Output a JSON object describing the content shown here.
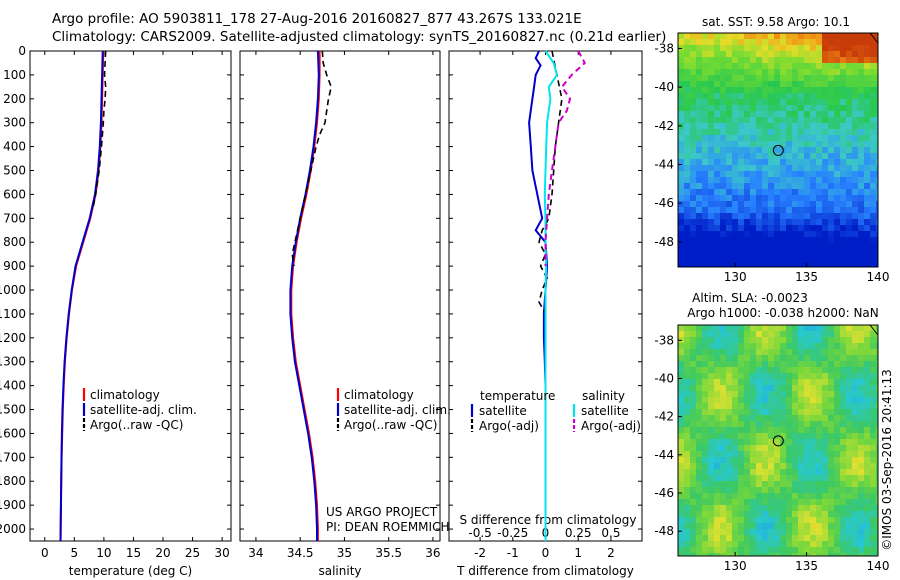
{
  "header": {
    "line1": "Argo profile: AO 5903811_178 27-Aug-2016 20160827_877 43.267S 133.021E",
    "line2": "Climatology: CARS2009. Satellite-adjusted climatology: synTS_20160827.nc (0.21d earlier)"
  },
  "depth_ticks": [
    "0",
    "100",
    "200",
    "300",
    "400",
    "500",
    "600",
    "700",
    "800",
    "900",
    "1000",
    "1100",
    "1200",
    "1300",
    "1400",
    "1500",
    "1600",
    "1700",
    "1800",
    "1900",
    "2000"
  ],
  "colors": {
    "climatology": "#ff0000",
    "satellite": "#0000cc",
    "argo": "#000000",
    "satellite_s": "#00e5ee",
    "argo_s": "#cc00cc"
  },
  "chart_data": [
    {
      "type": "line",
      "xlabel": "temperature (deg C)",
      "xticks": [
        "0",
        "5",
        "10",
        "15",
        "20",
        "25",
        "30"
      ],
      "xlim": [
        -2.5,
        31.5
      ],
      "ylim": [
        2050,
        0
      ],
      "legend": [
        "climatology",
        "satellite-adj. clim.",
        "Argo(..raw -QC)"
      ],
      "series": [
        {
          "name": "climatology",
          "depth": [
            0,
            100,
            200,
            300,
            400,
            500,
            600,
            700,
            800,
            900,
            1000,
            1100,
            1200,
            1300,
            1400,
            1500,
            1600,
            1700,
            1800,
            1900,
            2000,
            2050
          ],
          "values": [
            9.9,
            9.8,
            9.7,
            9.6,
            9.4,
            9.1,
            8.6,
            7.7,
            6.5,
            5.3,
            4.6,
            4.1,
            3.7,
            3.4,
            3.2,
            3.05,
            2.95,
            2.85,
            2.8,
            2.75,
            2.7,
            2.68
          ]
        },
        {
          "name": "satellite-adj. clim.",
          "depth": [
            0,
            100,
            200,
            300,
            400,
            500,
            600,
            700,
            800,
            900,
            1000,
            1100,
            1200,
            1300,
            1400,
            1500,
            1600,
            1700,
            1800,
            1900,
            2000,
            2050
          ],
          "values": [
            9.8,
            9.7,
            9.6,
            9.5,
            9.3,
            9.0,
            8.5,
            7.6,
            6.4,
            5.2,
            4.55,
            4.05,
            3.65,
            3.35,
            3.15,
            3.0,
            2.9,
            2.82,
            2.77,
            2.72,
            2.68,
            2.66
          ]
        },
        {
          "name": "Argo(..raw -QC)",
          "depth": [
            0,
            50,
            100,
            150,
            200,
            250,
            300,
            400,
            500,
            600,
            650
          ],
          "values": [
            10.3,
            10.2,
            10.1,
            10.3,
            10.2,
            10.0,
            9.9,
            9.6,
            9.2,
            8.6,
            8.2
          ]
        }
      ]
    },
    {
      "type": "line",
      "xlabel": "salinity",
      "xticks": [
        "34",
        "34.5",
        "35",
        "35.5",
        "36"
      ],
      "xlim": [
        33.82,
        36.08
      ],
      "ylim": [
        2050,
        0
      ],
      "legend": [
        "climatology",
        "satellite-adj. clim.",
        "Argo(..raw -QC)"
      ],
      "annotations": [
        "US ARGO PROJECT",
        "PI: DEAN ROEMMICH"
      ],
      "series": [
        {
          "name": "climatology",
          "depth": [
            0,
            100,
            200,
            300,
            400,
            500,
            600,
            700,
            800,
            900,
            1000,
            1100,
            1200,
            1300,
            1400,
            1500,
            1600,
            1700,
            1800,
            1900,
            2000,
            2050
          ],
          "values": [
            34.72,
            34.72,
            34.71,
            34.69,
            34.66,
            34.62,
            34.57,
            34.51,
            34.46,
            34.42,
            34.4,
            34.4,
            34.42,
            34.45,
            34.5,
            34.55,
            34.6,
            34.64,
            34.67,
            34.69,
            34.7,
            34.7
          ]
        },
        {
          "name": "satellite-adj. clim.",
          "depth": [
            0,
            100,
            200,
            300,
            400,
            500,
            600,
            700,
            800,
            900,
            1000,
            1100,
            1200,
            1300,
            1400,
            1500,
            1600,
            1700,
            1800,
            1900,
            2000,
            2050
          ],
          "values": [
            34.7,
            34.71,
            34.7,
            34.68,
            34.65,
            34.61,
            34.56,
            34.5,
            34.45,
            34.41,
            34.39,
            34.39,
            34.41,
            34.44,
            34.49,
            34.54,
            34.59,
            34.63,
            34.66,
            34.68,
            34.69,
            34.69
          ]
        },
        {
          "name": "Argo(..raw -QC)",
          "depth": [
            0,
            50,
            100,
            150,
            200,
            250,
            300,
            350,
            400,
            500,
            600,
            700,
            800,
            850,
            900
          ],
          "values": [
            34.75,
            34.76,
            34.8,
            34.85,
            34.82,
            34.8,
            34.78,
            34.72,
            34.68,
            34.62,
            34.56,
            34.5,
            34.44,
            34.41,
            34.43
          ]
        }
      ]
    },
    {
      "type": "line",
      "xlabel": "T difference from climatology",
      "xlabel_top": "S difference from climatology",
      "xticks": [
        "-2",
        "-1",
        "0",
        "1",
        "2"
      ],
      "xticks_top": [
        "-0.5",
        "-0.25",
        "0",
        "0.25",
        "0.5"
      ],
      "xlim": [
        -2.95,
        2.95
      ],
      "ylim": [
        2050,
        0
      ],
      "legend_t_title": "temperature",
      "legend_s_title": "salinity",
      "legend_t": [
        "satellite",
        "Argo(-adj)"
      ],
      "legend_s": [
        "satellite",
        "Argo(-adj)"
      ],
      "series": [
        {
          "name": "satellite",
          "depth": [
            0,
            30,
            60,
            100,
            150,
            200,
            300,
            400,
            500,
            600,
            700,
            750,
            800,
            900,
            1000,
            1100,
            1200,
            1300,
            1400,
            2050
          ],
          "values": [
            -0.2,
            -0.3,
            -0.15,
            -0.3,
            -0.35,
            -0.4,
            -0.5,
            -0.45,
            -0.4,
            -0.25,
            -0.1,
            -0.3,
            0.0,
            0.05,
            0.0,
            -0.05,
            -0.05,
            -0.02,
            0.0,
            0.0
          ]
        },
        {
          "name": "Argo(-adj)",
          "depth": [
            0,
            100,
            200,
            300,
            400,
            500,
            600,
            700,
            750,
            800,
            850,
            900,
            950,
            1000,
            1050,
            1100
          ],
          "values": [
            0.2,
            0.35,
            0.5,
            0.4,
            0.3,
            0.25,
            0.2,
            0.1,
            -0.1,
            -0.2,
            0.0,
            -0.15,
            0.05,
            -0.1,
            -0.2,
            0.0
          ]
        },
        {
          "name": "satellite (S)",
          "depth": [
            0,
            50,
            100,
            150,
            200,
            300,
            400,
            500,
            600,
            700,
            800,
            900,
            1000,
            1100,
            1200,
            2050
          ],
          "values": [
            0.0,
            0.25,
            0.35,
            0.1,
            0.15,
            0.05,
            0.02,
            0.0,
            -0.02,
            0.0,
            0.0,
            0.02,
            0.0,
            0.0,
            0.0,
            0.0
          ]
        },
        {
          "name": "Argo(-adj) (S)",
          "depth": [
            0,
            50,
            100,
            150,
            200,
            250,
            300,
            400,
            500,
            600,
            700,
            800,
            900
          ],
          "values": [
            1.0,
            1.2,
            0.8,
            0.5,
            0.75,
            0.65,
            0.4,
            0.3,
            0.2,
            0.1,
            0.05,
            0.0,
            0.0
          ]
        }
      ]
    },
    {
      "type": "heatmap",
      "title": "sat. SST: 9.58 Argo: 10.1",
      "xticks": [
        "130",
        "135",
        "140"
      ],
      "yticks": [
        "-38",
        "-40",
        "-42",
        "-44",
        "-46",
        "-48"
      ],
      "xlim": [
        126,
        140
      ],
      "ylim": [
        -49.3,
        -37.2
      ],
      "marker": {
        "lon": 133.02,
        "lat": -43.27
      }
    },
    {
      "type": "heatmap",
      "title_line1": "Altim. SLA: -0.0023",
      "title_line2": "Argo h1000: -0.038 h2000: NaN",
      "xticks": [
        "130",
        "135",
        "140"
      ],
      "yticks": [
        "-38",
        "-40",
        "-42",
        "-44",
        "-46",
        "-48"
      ],
      "xlim": [
        126,
        140
      ],
      "ylim": [
        -49.3,
        -37.2
      ],
      "marker": {
        "lon": 133.02,
        "lat": -43.27
      },
      "side_label": "©IMOS 03-Sep-2016 20:41:13"
    }
  ]
}
